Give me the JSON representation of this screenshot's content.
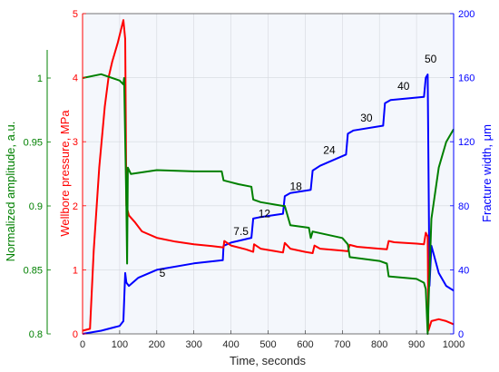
{
  "chart_data": {
    "type": "line",
    "title": "",
    "xlabel": "Time, seconds",
    "xlim": [
      0,
      1000
    ],
    "x_ticks": [
      "0",
      "100",
      "200",
      "300",
      "400",
      "500",
      "600",
      "700",
      "800",
      "900",
      "1000"
    ],
    "grid": true,
    "axes": {
      "pressure": {
        "label": "Wellbore pressure, MPa",
        "range": [
          0,
          5
        ],
        "ticks": [
          "0",
          "1",
          "2",
          "3",
          "4",
          "5"
        ],
        "color": "#ff0000"
      },
      "amplitude": {
        "label": "Normalized amplitude, a.u.",
        "range": [
          0.8,
          1.05
        ],
        "ticks": [
          "0.8",
          "0.85",
          "0.9",
          "0.95",
          "1"
        ],
        "color": "#008000"
      },
      "width": {
        "label": "Fracture width, μm",
        "range": [
          0,
          200
        ],
        "ticks": [
          "0",
          "40",
          "80",
          "120",
          "160",
          "200"
        ],
        "color": "#0000ff"
      }
    },
    "series": [
      {
        "axis": "pressure",
        "color": "#ff0000",
        "x": [
          0,
          20,
          30,
          45,
          60,
          70,
          80,
          95,
          110,
          115,
          118,
          125,
          140,
          160,
          200,
          250,
          300,
          350,
          380,
          382,
          400,
          440,
          460,
          462,
          480,
          520,
          540,
          545,
          560,
          600,
          620,
          625,
          640,
          700,
          715,
          720,
          740,
          800,
          820,
          825,
          840,
          900,
          920,
          925,
          930,
          932,
          940,
          960,
          980,
          1000
        ],
        "y": [
          0.05,
          0.08,
          1.3,
          2.6,
          3.55,
          4.0,
          4.25,
          4.55,
          4.9,
          4.6,
          2.0,
          1.85,
          1.75,
          1.6,
          1.5,
          1.44,
          1.4,
          1.37,
          1.35,
          1.45,
          1.38,
          1.32,
          1.28,
          1.4,
          1.33,
          1.29,
          1.27,
          1.42,
          1.33,
          1.28,
          1.26,
          1.38,
          1.33,
          1.3,
          1.29,
          1.39,
          1.36,
          1.33,
          1.32,
          1.45,
          1.43,
          1.41,
          1.4,
          1.58,
          1.52,
          0.05,
          0.2,
          0.23,
          0.2,
          0.15
        ]
      },
      {
        "axis": "amplitude",
        "color": "#008000",
        "x": [
          0,
          50,
          100,
          110,
          112,
          118,
          120,
          122,
          130,
          200,
          300,
          375,
          380,
          420,
          455,
          460,
          480,
          540,
          545,
          560,
          610,
          615,
          620,
          700,
          715,
          720,
          800,
          820,
          825,
          900,
          920,
          925,
          930,
          933,
          940,
          960,
          980,
          1000
        ],
        "y": [
          1.0,
          1.003,
          0.998,
          0.995,
          1.0,
          0.9,
          0.855,
          0.93,
          0.925,
          0.928,
          0.927,
          0.927,
          0.92,
          0.917,
          0.915,
          0.905,
          0.903,
          0.9,
          0.9,
          0.885,
          0.883,
          0.875,
          0.88,
          0.875,
          0.87,
          0.86,
          0.857,
          0.855,
          0.845,
          0.843,
          0.84,
          0.835,
          0.8,
          0.83,
          0.89,
          0.93,
          0.95,
          0.96
        ]
      },
      {
        "axis": "width",
        "color": "#0000ff",
        "x": [
          0,
          50,
          100,
          110,
          115,
          118,
          125,
          150,
          200,
          300,
          378,
          380,
          400,
          455,
          460,
          480,
          540,
          545,
          560,
          615,
          620,
          640,
          710,
          715,
          730,
          810,
          815,
          830,
          920,
          925,
          930,
          935,
          940,
          960,
          980,
          1000
        ],
        "y": [
          0,
          2,
          5,
          8,
          38,
          32,
          30,
          35,
          40,
          44,
          46,
          55,
          57,
          60,
          72,
          73,
          75,
          86,
          88,
          90,
          102,
          105,
          112,
          125,
          127,
          130,
          144,
          146,
          148,
          160,
          162,
          30,
          55,
          38,
          30,
          27
        ]
      }
    ],
    "annotations": [
      {
        "text": "5",
        "x": 215,
        "pressure_y": 0.95
      },
      {
        "text": "7.5",
        "x": 427,
        "pressure_y": 1.6
      },
      {
        "text": "12",
        "x": 490,
        "pressure_y": 1.88
      },
      {
        "text": "18",
        "x": 575,
        "pressure_y": 2.3
      },
      {
        "text": "24",
        "x": 665,
        "pressure_y": 2.87
      },
      {
        "text": "30",
        "x": 765,
        "pressure_y": 3.37
      },
      {
        "text": "40",
        "x": 865,
        "pressure_y": 3.87
      },
      {
        "text": "50",
        "x": 938,
        "pressure_y": 4.29
      }
    ]
  }
}
